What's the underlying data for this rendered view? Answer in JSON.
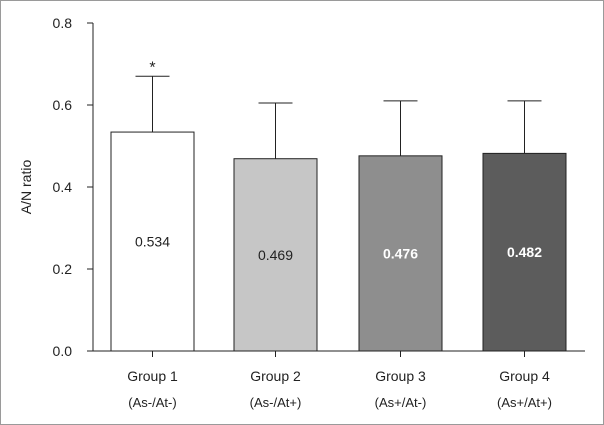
{
  "chart_data": {
    "type": "bar",
    "title": "",
    "xlabel": "",
    "ylabel": "A/N ratio",
    "ylim": [
      0,
      0.8
    ],
    "yticks": [
      "0.0",
      "0.2",
      "0.4",
      "0.6",
      "0.8"
    ],
    "ytick_values": [
      0,
      0.2,
      0.4,
      0.6,
      0.8
    ],
    "categories": [
      "Group 1",
      "Group 2",
      "Group 3",
      "Group 4"
    ],
    "subcategories": [
      "(As-/At-)",
      "(As-/At+)",
      "(As+/At-)",
      "(As+/At+)"
    ],
    "values": [
      0.534,
      0.469,
      0.476,
      0.482
    ],
    "value_labels": [
      "0.534",
      "0.469",
      "0.476",
      "0.482"
    ],
    "error_upper": [
      0.67,
      0.605,
      0.61,
      0.61
    ],
    "annotations": [
      "*",
      "",
      "",
      ""
    ],
    "bar_colors": [
      "#ffffff",
      "#c6c6c6",
      "#8e8e8e",
      "#5c5c5c"
    ],
    "label_colors": [
      "#222222",
      "#222222",
      "#ffffff",
      "#ffffff"
    ],
    "grid": false,
    "legend": "none"
  }
}
